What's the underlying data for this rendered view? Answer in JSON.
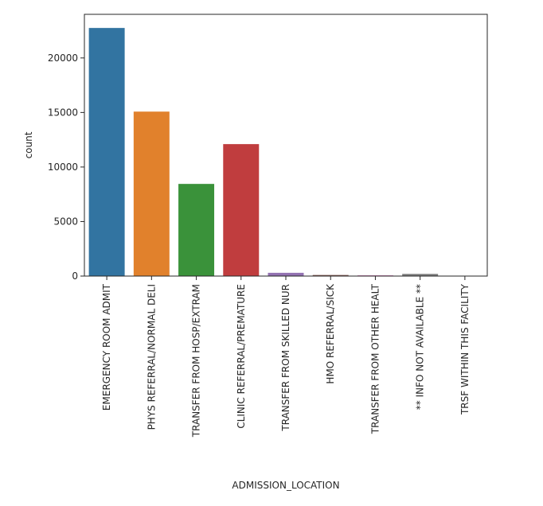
{
  "chart_data": {
    "type": "bar",
    "xlabel": "ADMISSION_LOCATION",
    "ylabel": "count",
    "ylim": [
      0,
      24000
    ],
    "yticks": [
      0,
      5000,
      10000,
      15000,
      20000
    ],
    "ytick_labels": [
      "0",
      "5000",
      "10000",
      "15000",
      "20000"
    ],
    "grid": false,
    "categories": [
      "EMERGENCY ROOM ADMIT",
      "PHYS REFERRAL/NORMAL DELI",
      "TRANSFER FROM HOSP/EXTRAM",
      "CLINIC REFERRAL/PREMATURE",
      "TRANSFER FROM SKILLED NUR",
      "HMO REFERRAL/SICK",
      "TRANSFER FROM OTHER HEALT",
      "** INFO NOT AVAILABLE **",
      "TRSF WITHIN THIS FACILITY"
    ],
    "values": [
      22750,
      15080,
      8450,
      12100,
      300,
      100,
      70,
      200,
      5
    ],
    "colors": [
      "#3274a1",
      "#e1812c",
      "#3a923a",
      "#c03d3e",
      "#9372b2",
      "#845b53",
      "#d684bd",
      "#7f7f7f",
      "#a9aa35"
    ]
  }
}
